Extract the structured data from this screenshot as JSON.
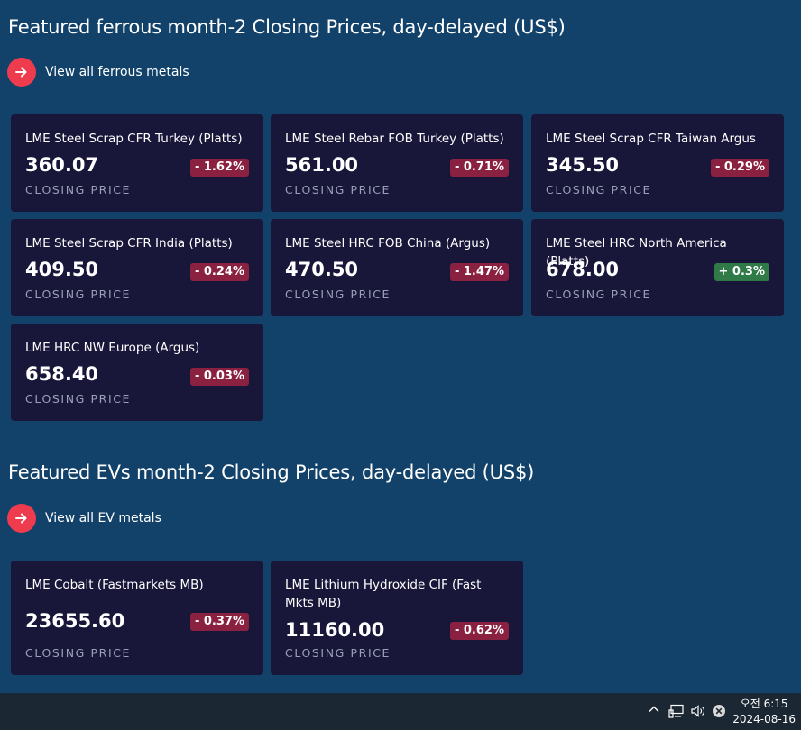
{
  "sections": [
    {
      "title": "Featured ferrous month-2 Closing Prices, day-delayed (US$)",
      "view_all": "View all ferrous metals",
      "cards": [
        {
          "name": "LME Steel Scrap CFR Turkey (Platts)",
          "price": "360.07",
          "change": "- 1.62%",
          "direction": "down",
          "caption": "CLOSING PRICE"
        },
        {
          "name": "LME Steel Rebar FOB Turkey (Platts)",
          "price": "561.00",
          "change": "- 0.71%",
          "direction": "down",
          "caption": "CLOSING PRICE"
        },
        {
          "name": "LME Steel Scrap CFR Taiwan Argus",
          "price": "345.50",
          "change": "- 0.29%",
          "direction": "down",
          "caption": "CLOSING PRICE"
        },
        {
          "name": "LME Steel Scrap CFR India (Platts)",
          "price": "409.50",
          "change": "- 0.24%",
          "direction": "down",
          "caption": "CLOSING PRICE"
        },
        {
          "name": "LME Steel HRC FOB China (Argus)",
          "price": "470.50",
          "change": "- 1.47%",
          "direction": "down",
          "caption": "CLOSING PRICE"
        },
        {
          "name": "LME Steel HRC North America (Platts)",
          "price": "678.00",
          "change": "+ 0.3%",
          "direction": "up",
          "caption": "CLOSING PRICE"
        },
        {
          "name": "LME HRC NW Europe (Argus)",
          "price": "658.40",
          "change": "- 0.03%",
          "direction": "down",
          "caption": "CLOSING PRICE"
        }
      ]
    },
    {
      "title": "Featured EVs month-2 Closing Prices, day-delayed (US$)",
      "view_all": "View all EV metals",
      "cards": [
        {
          "name": "LME Cobalt (Fastmarkets MB)",
          "price": "23655.60",
          "change": "- 0.37%",
          "direction": "down",
          "caption": "CLOSING PRICE"
        },
        {
          "name": "LME Lithium Hydroxide CIF (Fast Mkts MB)",
          "price": "11160.00",
          "change": "- 0.62%",
          "direction": "down",
          "caption": "CLOSING PRICE"
        }
      ]
    }
  ],
  "taskbar": {
    "time": "오전 6:15",
    "date": "2024-08-16",
    "icons": [
      "chevron-up-icon",
      "network-icon",
      "volume-icon",
      "close-circle-icon"
    ]
  },
  "colors": {
    "background": "#12426a",
    "card": "#181639",
    "accent": "#ef3b4e",
    "down": "#8b2140",
    "up": "#2f7a47"
  }
}
